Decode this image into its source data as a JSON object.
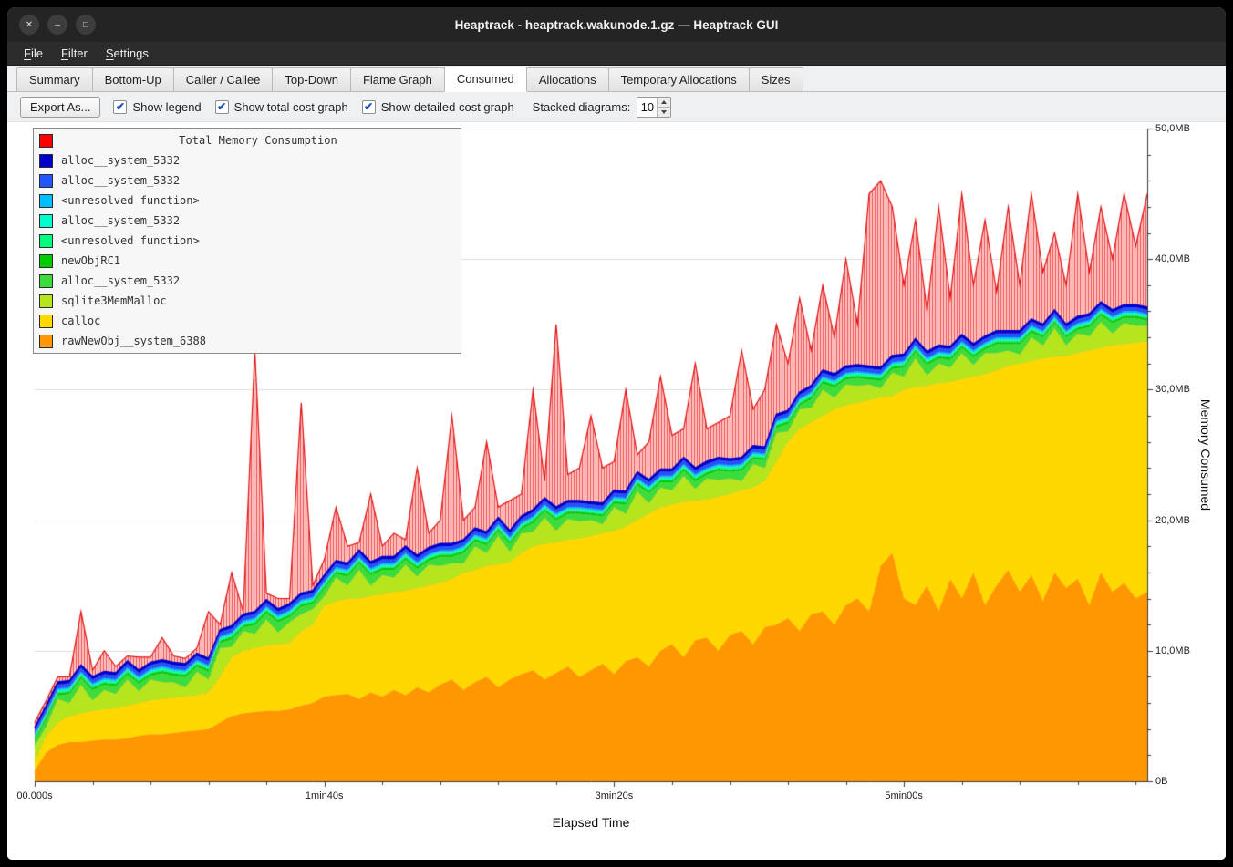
{
  "window": {
    "title": "Heaptrack - heaptrack.wakunode.1.gz — Heaptrack GUI",
    "controls": [
      {
        "name": "close",
        "glyph": "✕"
      },
      {
        "name": "minimize",
        "glyph": "–"
      },
      {
        "name": "maximize",
        "glyph": "□"
      }
    ]
  },
  "menu": {
    "items": [
      "File",
      "Filter",
      "Settings"
    ]
  },
  "tabs": {
    "items": [
      "Summary",
      "Bottom-Up",
      "Caller / Callee",
      "Top-Down",
      "Flame Graph",
      "Consumed",
      "Allocations",
      "Temporary Allocations",
      "Sizes"
    ],
    "active": "Consumed"
  },
  "toolbar": {
    "export_label": "Export As...",
    "checkboxes": [
      {
        "label": "Show legend",
        "checked": true
      },
      {
        "label": "Show total cost graph",
        "checked": true
      },
      {
        "label": "Show detailed cost graph",
        "checked": true
      }
    ],
    "stacked_label": "Stacked diagrams:",
    "stacked_value": "10"
  },
  "legend": {
    "title": "Total Memory Consumption",
    "title_color": "#ff0000",
    "items": [
      {
        "label": "alloc__system_5332",
        "color": "#0000cd"
      },
      {
        "label": "alloc__system_5332",
        "color": "#2255ff"
      },
      {
        "label": "<unresolved function>",
        "color": "#00bfff"
      },
      {
        "label": "alloc__system_5332",
        "color": "#00ffcc"
      },
      {
        "label": "<unresolved function>",
        "color": "#00ff7f"
      },
      {
        "label": "newObjRC1",
        "color": "#00cc00"
      },
      {
        "label": "alloc__system_5332",
        "color": "#3ddc3d"
      },
      {
        "label": "sqlite3MemMalloc",
        "color": "#b5e61d"
      },
      {
        "label": "calloc",
        "color": "#ffd800"
      },
      {
        "label": "rawNewObj__system_6388",
        "color": "#ff9800"
      }
    ]
  },
  "chart_data": {
    "type": "area",
    "title": "Total Memory Consumption",
    "xlabel": "Elapsed Time",
    "ylabel": "Memory Consumed",
    "xlim_s": [
      0,
      384
    ],
    "ylim_mb": [
      0,
      50
    ],
    "points": 97,
    "x_step_s": 4,
    "x_major_ticks": [
      {
        "label": "00.000s",
        "s": 0
      },
      {
        "label": "1min40s",
        "s": 100
      },
      {
        "label": "3min20s",
        "s": 200
      },
      {
        "label": "5min00s",
        "s": 300
      }
    ],
    "x_minor_tick_step_s": 20,
    "y_major_ticks": [
      {
        "label": "0B",
        "mb": 0
      },
      {
        "label": "10,0MB",
        "mb": 10
      },
      {
        "label": "20,0MB",
        "mb": 20
      },
      {
        "label": "30,0MB",
        "mb": 30
      },
      {
        "label": "40,0MB",
        "mb": 40
      },
      {
        "label": "50,0MB",
        "mb": 50
      }
    ],
    "y_minor_tick_step_mb": 2,
    "bands": [
      {
        "name": "rawNewObj__system_6388",
        "color": "#ff9800",
        "values_mb": [
          0.8,
          2.2,
          2.8,
          3,
          3,
          3.1,
          3.2,
          3.2,
          3.3,
          3.5,
          3.6,
          3.6,
          3.7,
          3.8,
          3.9,
          4,
          4.5,
          5,
          5.2,
          5.3,
          5.4,
          5.4,
          5.5,
          5.8,
          6,
          6.5,
          6.6,
          6.7,
          6.3,
          6.8,
          6.5,
          7,
          6.6,
          7.2,
          6.8,
          7.4,
          7.8,
          7,
          7.6,
          8,
          7.2,
          7.8,
          8.2,
          8.5,
          7.8,
          8.3,
          8.8,
          8,
          8.5,
          9,
          8.2,
          9.2,
          9.5,
          8.8,
          10,
          10.5,
          9.5,
          10.8,
          11,
          10,
          11.2,
          11.5,
          10.5,
          11.8,
          12,
          12.5,
          11.5,
          12.8,
          13,
          12,
          13.5,
          14,
          13,
          16.5,
          17.5,
          14,
          13.5,
          15,
          13,
          15.5,
          14,
          16,
          13.5,
          15,
          16.2,
          14.5,
          15.8,
          13.8,
          16,
          14.8,
          15.5,
          13.5,
          16,
          14.5,
          15.2,
          14,
          14.5
        ]
      },
      {
        "name": "calloc",
        "color": "#ffd800",
        "values_mb": [
          1.5,
          3.5,
          4.5,
          5,
          5.2,
          5.4,
          5.5,
          5.6,
          5.8,
          6,
          6.2,
          6.3,
          6.4,
          6.5,
          6.6,
          6.8,
          8,
          9.5,
          10,
          10.2,
          10.4,
          10.5,
          10.6,
          11.5,
          12,
          13.5,
          13.8,
          14,
          14,
          14.2,
          14.3,
          14.5,
          14.6,
          14.8,
          15,
          15.2,
          15.5,
          16,
          16.2,
          16.5,
          16.6,
          16.8,
          17.5,
          18,
          18.2,
          18.3,
          18.5,
          18.6,
          18.8,
          19,
          19.2,
          19.5,
          20,
          20.5,
          21,
          21.2,
          21.4,
          21.5,
          21.6,
          21.8,
          22,
          22.3,
          22.5,
          23,
          24.5,
          26,
          27,
          27.5,
          28,
          28.5,
          28.8,
          29,
          29.2,
          29.4,
          29.5,
          30,
          30.2,
          30.3,
          30.5,
          30.6,
          30.8,
          31,
          31.2,
          31.5,
          31.8,
          32,
          32.2,
          32.4,
          32.5,
          32.6,
          32.8,
          33,
          33.2,
          33.4,
          33.5,
          33.6,
          33.7
        ]
      },
      {
        "name": "sqlite3MemMalloc",
        "color": "#b5e61d",
        "values_mb": [
          2.7,
          4.2,
          6.3,
          6,
          7.4,
          6.2,
          7,
          6.7,
          7.8,
          6.9,
          7.8,
          7.6,
          7.6,
          7.2,
          8.4,
          7.8,
          10.2,
          10.3,
          11.5,
          11.3,
          12.4,
          11.4,
          12.2,
          12.8,
          13.2,
          14.2,
          15.6,
          15,
          16.2,
          15,
          15.8,
          15.6,
          16.6,
          15.7,
          16.6,
          16.5,
          16.7,
          16.7,
          18,
          17.5,
          18.8,
          17.6,
          19,
          19.1,
          20.2,
          19.2,
          20.1,
          19.9,
          20,
          19.7,
          21,
          20.5,
          22.2,
          21.3,
          22.5,
          22.3,
          23.4,
          22.4,
          23.2,
          23.1,
          23.2,
          23,
          24.3,
          24,
          26.7,
          26.8,
          28.5,
          28.6,
          30,
          29.4,
          30.4,
          30.3,
          30.4,
          30.1,
          31.3,
          31,
          32.4,
          31.1,
          32,
          31.7,
          32.8,
          31.9,
          32.8,
          32.8,
          33,
          32.7,
          34,
          33.4,
          34.7,
          33.4,
          34.3,
          34.1,
          35.2,
          34.3,
          35.1,
          34.9,
          34.9
        ]
      },
      {
        "name": "alloc__system_5332",
        "color": "#3ddc3d",
        "values_mb": [
          3.1,
          4.8,
          6.6,
          6.7,
          7.9,
          7,
          7.4,
          7.3,
          8.2,
          7.5,
          8.1,
          8.3,
          8.1,
          8,
          8.8,
          8.4,
          10.6,
          10.9,
          11.8,
          12,
          12.9,
          12.2,
          12.6,
          13.4,
          13.6,
          14.8,
          15.9,
          15.7,
          16.7,
          15.8,
          16.2,
          16.2,
          17,
          16.3,
          16.9,
          17.2,
          17.2,
          17.5,
          18.4,
          18.1,
          19.2,
          18.2,
          19.3,
          19.8,
          20.7,
          20,
          20.5,
          20.5,
          20.4,
          20.3,
          21.3,
          21.2,
          22.7,
          22.1,
          22.9,
          22.9,
          23.8,
          23,
          23.5,
          23.8,
          23.7,
          23.8,
          24.7,
          24.6,
          27.1,
          27.4,
          28.8,
          29.3,
          30.5,
          30.2,
          30.8,
          30.9,
          30.8,
          30.7,
          31.6,
          31.7,
          32.9,
          31.9,
          32.4,
          32.3,
          33.2,
          32.5,
          33.1,
          33.5,
          33.5,
          33.5,
          34.4,
          34,
          35.1,
          34,
          34.6,
          34.8,
          35.7,
          35.1,
          35.5,
          35.5,
          35.3
        ]
      },
      {
        "name": "newObjRC1",
        "color": "#00cc00",
        "thickness_mb": 0.15
      },
      {
        "name": "<unresolved function>",
        "color": "#00ff7f",
        "thickness_mb": 0.12
      },
      {
        "name": "alloc__system_5332",
        "color": "#00ffcc",
        "thickness_mb": 0.12
      },
      {
        "name": "<unresolved function>",
        "color": "#00bfff",
        "thickness_mb": 0.12
      },
      {
        "name": "alloc__system_5332",
        "color": "#2255ff",
        "thickness_mb": 0.3
      },
      {
        "name": "alloc__system_5332",
        "color": "#0000cd",
        "thickness_mb": 0.2
      }
    ],
    "total": {
      "name": "Total Memory Consumption",
      "color": "#ff0000",
      "values_mb": [
        4.5,
        6.2,
        8,
        8,
        13,
        8.5,
        10,
        8.8,
        9.6,
        9.5,
        9.5,
        11,
        9.6,
        9.4,
        10.2,
        13,
        12,
        16,
        13,
        33,
        14.4,
        14,
        14,
        29,
        15,
        17,
        21,
        18,
        18.3,
        22,
        18,
        19,
        18.5,
        24,
        19,
        20,
        28,
        20,
        21,
        26,
        21,
        21.5,
        22,
        30,
        23,
        35,
        23.5,
        24,
        28,
        24,
        24.5,
        30,
        25,
        26,
        31,
        26.5,
        27,
        32,
        27,
        27.5,
        28,
        33,
        28.5,
        30,
        35,
        32,
        37,
        33,
        38,
        34,
        40,
        35,
        45,
        46,
        44,
        38,
        43,
        36,
        44,
        37,
        45,
        38,
        43,
        37.5,
        44,
        38,
        45,
        39,
        42,
        38,
        45,
        39,
        44,
        40,
        45,
        41,
        45
      ]
    }
  }
}
